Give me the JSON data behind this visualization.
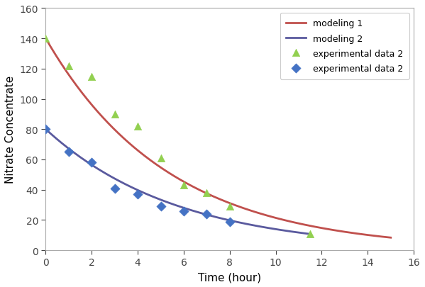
{
  "title": "",
  "xlabel": "Time (hour)",
  "ylabel": "Nitrate Concentrate",
  "xlim": [
    0,
    16
  ],
  "ylim": [
    0,
    160
  ],
  "xticks": [
    0,
    2,
    4,
    6,
    8,
    10,
    12,
    14,
    16
  ],
  "yticks": [
    0,
    20,
    40,
    60,
    80,
    100,
    120,
    140,
    160
  ],
  "modeling1_color": "#c0504d",
  "modeling2_color": "#5a5a9e",
  "exp_triangle_color": "#92d050",
  "exp_diamond_color": "#4472c4",
  "modeling1_C0": 140,
  "modeling1_k": 0.188,
  "modeling2_C0": 80,
  "modeling2_k": 0.175,
  "modeling2_t_end": 11.5,
  "exp_triangle_x": [
    0,
    1,
    2,
    3,
    4,
    5,
    6,
    7,
    8,
    11.5
  ],
  "exp_triangle_y": [
    140,
    122,
    115,
    90,
    82,
    61,
    43,
    38,
    29,
    11
  ],
  "exp_diamond_x": [
    0,
    1,
    2,
    3,
    4,
    5,
    6,
    7,
    8
  ],
  "exp_diamond_y": [
    80,
    65,
    58,
    41,
    37,
    29,
    26,
    24,
    19
  ],
  "legend_labels": [
    "modeling 1",
    "modeling 2",
    "experimental data 2",
    "experimental data 2"
  ],
  "background_color": "#ffffff",
  "legend_fontsize": 9,
  "axis_fontsize": 11,
  "tick_fontsize": 10
}
